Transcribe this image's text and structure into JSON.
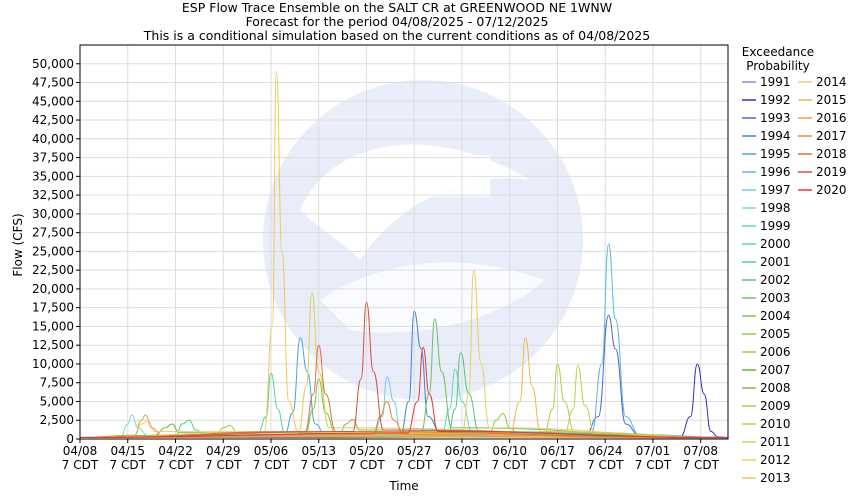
{
  "chart_data": {
    "type": "line",
    "title": "ESP Flow Trace Ensemble on the SALT CR at GREENWOOD NE 1WNW",
    "subtitle": "Forecast for the period 04/08/2025 - 07/12/2025",
    "subtitle2": "This is a conditional simulation based on the current conditions as of 04/08/2025",
    "xlabel": "Time",
    "ylabel": "Flow (CFS)",
    "x_range_days": [
      0,
      95
    ],
    "ylim": [
      0,
      52500
    ],
    "y_ticks": [
      "0",
      "2,500",
      "5,000",
      "7,500",
      "10,000",
      "12,500",
      "15,000",
      "17,500",
      "20,000",
      "22,500",
      "25,000",
      "27,500",
      "30,000",
      "32,500",
      "35,000",
      "37,500",
      "40,000",
      "42,500",
      "45,000",
      "47,500",
      "50,000"
    ],
    "x_ticks": [
      {
        "day": 0,
        "l1": "04/08",
        "l2": "7 CDT"
      },
      {
        "day": 7,
        "l1": "04/15",
        "l2": "7 CDT"
      },
      {
        "day": 14,
        "l1": "04/22",
        "l2": "7 CDT"
      },
      {
        "day": 21,
        "l1": "04/29",
        "l2": "7 CDT"
      },
      {
        "day": 28,
        "l1": "05/06",
        "l2": "7 CDT"
      },
      {
        "day": 35,
        "l1": "05/13",
        "l2": "7 CDT"
      },
      {
        "day": 42,
        "l1": "05/20",
        "l2": "7 CDT"
      },
      {
        "day": 49,
        "l1": "05/27",
        "l2": "7 CDT"
      },
      {
        "day": 56,
        "l1": "06/03",
        "l2": "7 CDT"
      },
      {
        "day": 63,
        "l1": "06/10",
        "l2": "7 CDT"
      },
      {
        "day": 70,
        "l1": "06/17",
        "l2": "7 CDT"
      },
      {
        "day": 77,
        "l1": "06/24",
        "l2": "7 CDT"
      },
      {
        "day": 84,
        "l1": "07/01",
        "l2": "7 CDT"
      },
      {
        "day": 91,
        "l1": "07/08",
        "l2": "7 CDT"
      }
    ],
    "grid": true,
    "legend": {
      "title_line1": "Exceedance",
      "title_line2": "Probability",
      "placement": "right"
    },
    "series": [
      {
        "name": "1991",
        "color": "#8a8ad8",
        "points": [
          [
            0,
            200
          ],
          [
            30,
            300
          ],
          [
            60,
            250
          ],
          [
            95,
            150
          ]
        ]
      },
      {
        "name": "1992",
        "color": "#3333aa",
        "points": [
          [
            0,
            200
          ],
          [
            88,
            300
          ],
          [
            89.5,
            3000
          ],
          [
            90.5,
            10000
          ],
          [
            91.5,
            6000
          ],
          [
            92.5,
            1000
          ],
          [
            93.5,
            300
          ],
          [
            95,
            200
          ]
        ]
      },
      {
        "name": "1993",
        "color": "#4a6ad0",
        "points": [
          [
            0,
            200
          ],
          [
            74,
            400
          ],
          [
            76,
            3000
          ],
          [
            77.5,
            16500
          ],
          [
            78.5,
            12000
          ],
          [
            80,
            2000
          ],
          [
            82,
            500
          ],
          [
            95,
            200
          ]
        ]
      },
      {
        "name": "1994",
        "color": "#3f86c8",
        "points": [
          [
            0,
            200
          ],
          [
            47,
            500
          ],
          [
            48.2,
            5000
          ],
          [
            49,
            17000
          ],
          [
            50,
            12000
          ],
          [
            51,
            3000
          ],
          [
            53,
            600
          ],
          [
            95,
            200
          ]
        ]
      },
      {
        "name": "1995",
        "color": "#4aa8d8",
        "points": [
          [
            0,
            200
          ],
          [
            30,
            600
          ],
          [
            31.2,
            3500
          ],
          [
            32.3,
            13500
          ],
          [
            33.3,
            9000
          ],
          [
            34.5,
            2000
          ],
          [
            36,
            500
          ],
          [
            95,
            200
          ]
        ]
      },
      {
        "name": "1996",
        "color": "#5ab8e0",
        "points": [
          [
            0,
            200
          ],
          [
            75,
            800
          ],
          [
            76.5,
            10000
          ],
          [
            77.5,
            26000
          ],
          [
            78.5,
            16000
          ],
          [
            80,
            3000
          ],
          [
            82,
            600
          ],
          [
            95,
            200
          ]
        ]
      },
      {
        "name": "1997",
        "color": "#6dd0e8",
        "points": [
          [
            0,
            200
          ],
          [
            43,
            500
          ],
          [
            44.3,
            3000
          ],
          [
            45,
            8300
          ],
          [
            46,
            5000
          ],
          [
            47,
            1000
          ],
          [
            95,
            200
          ]
        ]
      },
      {
        "name": "1998",
        "color": "#6fe0e0",
        "points": [
          [
            0,
            200
          ],
          [
            6,
            400
          ],
          [
            7,
            2000
          ],
          [
            7.6,
            3200
          ],
          [
            8.5,
            1500
          ],
          [
            10,
            400
          ],
          [
            95,
            200
          ]
        ]
      },
      {
        "name": "1999",
        "color": "#5fd8c0",
        "points": [
          [
            0,
            200
          ],
          [
            53,
            600
          ],
          [
            54.2,
            4000
          ],
          [
            55,
            9300
          ],
          [
            56,
            5000
          ],
          [
            57.5,
            900
          ],
          [
            95,
            200
          ]
        ]
      },
      {
        "name": "2000",
        "color": "#55d4a8",
        "points": [
          [
            0,
            200
          ],
          [
            26,
            500
          ],
          [
            27.3,
            3000
          ],
          [
            28,
            8800
          ],
          [
            29,
            4000
          ],
          [
            30,
            800
          ],
          [
            95,
            200
          ]
        ]
      },
      {
        "name": "2001",
        "color": "#55cc90",
        "points": [
          [
            0,
            200
          ],
          [
            14,
            400
          ],
          [
            15,
            2000
          ],
          [
            16,
            2500
          ],
          [
            17,
            1200
          ],
          [
            18.5,
            400
          ],
          [
            95,
            200
          ]
        ]
      },
      {
        "name": "2002",
        "color": "#5cc07c",
        "points": [
          [
            0,
            200
          ],
          [
            54,
            800
          ],
          [
            55,
            4000
          ],
          [
            55.8,
            11500
          ],
          [
            57,
            6000
          ],
          [
            58.5,
            1000
          ],
          [
            95,
            200
          ]
        ]
      },
      {
        "name": "2003",
        "color": "#70c060",
        "points": [
          [
            0,
            200
          ],
          [
            50,
            800
          ],
          [
            51.2,
            6000
          ],
          [
            52,
            16000
          ],
          [
            53,
            9000
          ],
          [
            54.5,
            1500
          ],
          [
            95,
            200
          ]
        ]
      },
      {
        "name": "2004",
        "color": "#7ac848",
        "points": [
          [
            0,
            200
          ],
          [
            33,
            600
          ],
          [
            34.2,
            4000
          ],
          [
            35,
            8000
          ],
          [
            36,
            3500
          ],
          [
            37.5,
            700
          ],
          [
            95,
            200
          ]
        ]
      },
      {
        "name": "2005",
        "color": "#8cd03c",
        "points": [
          [
            0,
            200
          ],
          [
            60,
            500
          ],
          [
            61,
            2500
          ],
          [
            62,
            3400
          ],
          [
            63,
            1500
          ],
          [
            64.5,
            400
          ],
          [
            95,
            200
          ]
        ]
      },
      {
        "name": "2006",
        "color": "#a0cc30",
        "points": [
          [
            0,
            200
          ],
          [
            20,
            500
          ],
          [
            21,
            1500
          ],
          [
            22,
            1800
          ],
          [
            23,
            900
          ],
          [
            95,
            200
          ]
        ]
      },
      {
        "name": "2007",
        "color": "#68b838",
        "points": [
          [
            0,
            200
          ],
          [
            11,
            500
          ],
          [
            12.5,
            1500
          ],
          [
            13.5,
            2000
          ],
          [
            14.5,
            900
          ],
          [
            95,
            200
          ]
        ]
      },
      {
        "name": "2008",
        "color": "#88bb40",
        "points": [
          [
            0,
            200
          ],
          [
            38,
            500
          ],
          [
            39,
            2000
          ],
          [
            40,
            2600
          ],
          [
            41,
            1200
          ],
          [
            95,
            200
          ]
        ]
      },
      {
        "name": "2009",
        "color": "#b4cc40",
        "points": [
          [
            0,
            200
          ],
          [
            68,
            600
          ],
          [
            69.3,
            4000
          ],
          [
            70,
            10000
          ],
          [
            71,
            5000
          ],
          [
            72.5,
            900
          ],
          [
            95,
            200
          ]
        ]
      },
      {
        "name": "2010",
        "color": "#c8cc48",
        "points": [
          [
            0,
            200
          ],
          [
            71,
            600
          ],
          [
            72.3,
            4000
          ],
          [
            73,
            9800
          ],
          [
            74,
            4500
          ],
          [
            75.5,
            800
          ],
          [
            95,
            200
          ]
        ]
      },
      {
        "name": "2011",
        "color": "#d8d058",
        "points": [
          [
            0,
            200
          ],
          [
            32,
            800
          ],
          [
            33.2,
            7000
          ],
          [
            34,
            19500
          ],
          [
            35,
            9000
          ],
          [
            36.5,
            1500
          ],
          [
            95,
            200
          ]
        ]
      },
      {
        "name": "2012",
        "color": "#e8d060",
        "points": [
          [
            0,
            200
          ],
          [
            56,
            800
          ],
          [
            57,
            6000
          ],
          [
            57.7,
            22500
          ],
          [
            58.8,
            10000
          ],
          [
            60,
            1500
          ],
          [
            95,
            200
          ]
        ]
      },
      {
        "name": "2013",
        "color": "#f0c858",
        "points": [
          [
            0,
            200
          ],
          [
            27,
            1000
          ],
          [
            28.2,
            15000
          ],
          [
            28.8,
            49000
          ],
          [
            29.6,
            25000
          ],
          [
            30.6,
            5000
          ],
          [
            32,
            1000
          ],
          [
            95,
            200
          ]
        ]
      },
      {
        "name": "2014",
        "color": "#f0d070",
        "points": [
          [
            0,
            200
          ],
          [
            8,
            500
          ],
          [
            9,
            2000
          ],
          [
            10,
            2400
          ],
          [
            11,
            1000
          ],
          [
            95,
            200
          ]
        ]
      },
      {
        "name": "2015",
        "color": "#f0b848",
        "points": [
          [
            0,
            200
          ],
          [
            63,
            800
          ],
          [
            64.5,
            5000
          ],
          [
            65.3,
            13500
          ],
          [
            66.3,
            7000
          ],
          [
            67.5,
            1000
          ],
          [
            95,
            200
          ]
        ]
      },
      {
        "name": "2016",
        "color": "#f0a040",
        "points": [
          [
            0,
            200
          ],
          [
            8,
            500
          ],
          [
            9,
            2500
          ],
          [
            9.6,
            3200
          ],
          [
            10.5,
            1500
          ],
          [
            12,
            400
          ],
          [
            95,
            200
          ]
        ]
      },
      {
        "name": "2017",
        "color": "#e88838",
        "points": [
          [
            0,
            200
          ],
          [
            43,
            600
          ],
          [
            44,
            3000
          ],
          [
            45,
            5000
          ],
          [
            46,
            2500
          ],
          [
            47.5,
            600
          ],
          [
            95,
            200
          ]
        ]
      },
      {
        "name": "2018",
        "color": "#e07038",
        "points": [
          [
            0,
            200
          ],
          [
            33,
            1000
          ],
          [
            34.2,
            6000
          ],
          [
            35,
            12500
          ],
          [
            36,
            6000
          ],
          [
            37.5,
            1000
          ],
          [
            95,
            200
          ]
        ]
      },
      {
        "name": "2019",
        "color": "#d85038",
        "points": [
          [
            0,
            200
          ],
          [
            40,
            1000
          ],
          [
            41.2,
            8000
          ],
          [
            42,
            18200
          ],
          [
            43,
            9000
          ],
          [
            44.5,
            1200
          ],
          [
            95,
            200
          ]
        ]
      },
      {
        "name": "2020",
        "color": "#e83838",
        "points": [
          [
            0,
            200
          ],
          [
            48,
            800
          ],
          [
            49.5,
            5000
          ],
          [
            50.3,
            12200
          ],
          [
            51.2,
            6000
          ],
          [
            52.5,
            1000
          ],
          [
            95,
            200
          ]
        ]
      }
    ]
  }
}
